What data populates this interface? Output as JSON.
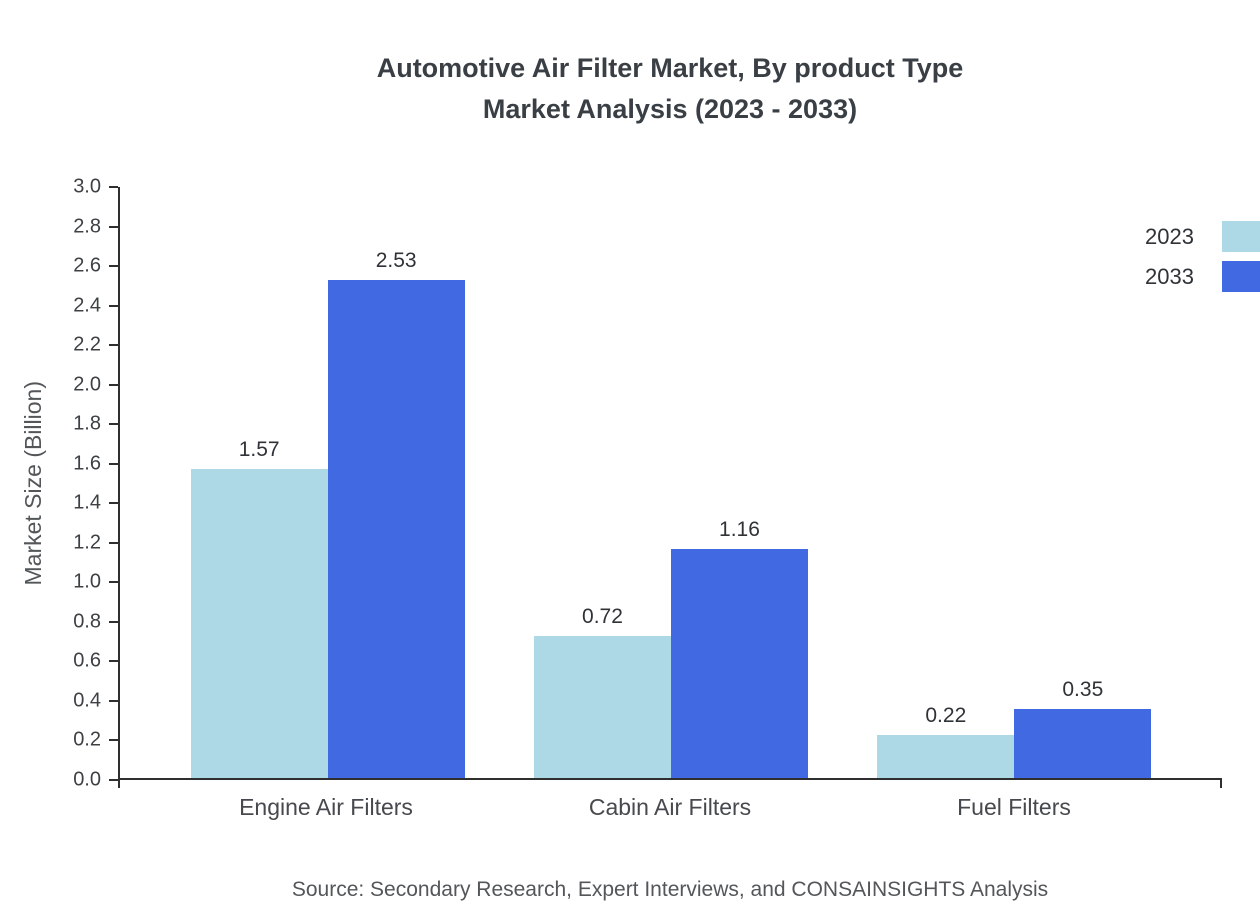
{
  "title": {
    "line1": "Automotive Air Filter Market, By product Type",
    "line2": "Market Analysis (2023 - 2033)"
  },
  "chart_data": {
    "type": "bar",
    "title": "Automotive Air Filter Market, By product Type Market Analysis (2023 - 2033)",
    "categories": [
      "Engine Air Filters",
      "Cabin Air Filters",
      "Fuel Filters"
    ],
    "series": [
      {
        "name": "2023",
        "color": "#add8e6",
        "values": [
          1.57,
          0.72,
          0.22
        ]
      },
      {
        "name": "2033",
        "color": "#4169e1",
        "values": [
          2.53,
          1.16,
          0.35
        ]
      }
    ],
    "xlabel": "",
    "ylabel": "Market Size (Billion)",
    "ylim": [
      0,
      3.0
    ],
    "ytick_step": 0.2,
    "value_label_decimals": 2,
    "grid": false,
    "legend_position": "top-right"
  },
  "source": "Source: Secondary Research, Expert Interviews, and CONSAINSIGHTS Analysis"
}
